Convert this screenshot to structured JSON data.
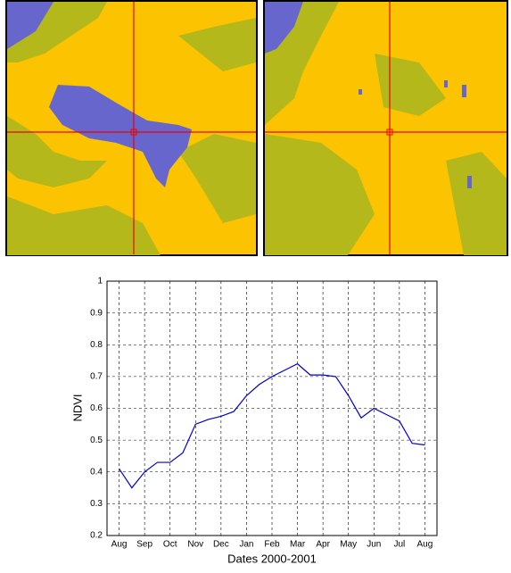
{
  "chart_data": {
    "type": "line",
    "xlabel": "Dates 2000-2001",
    "ylabel": "NDVI",
    "categories": [
      "Aug",
      null,
      "Sep",
      null,
      "Oct",
      null,
      "Nov",
      null,
      "Dec",
      null,
      "Jan",
      null,
      "Feb",
      null,
      "Mar",
      null,
      "Apr",
      null,
      "May",
      null,
      "Jun",
      null,
      "Jul",
      null,
      "Aug"
    ],
    "series": [
      {
        "color": "#0000cc",
        "values": [
          0.41,
          0.35,
          0.4,
          0.43,
          0.43,
          0.46,
          0.55,
          0.565,
          0.575,
          0.59,
          0.64,
          0.675,
          0.7,
          0.72,
          0.74,
          0.705,
          0.705,
          0.7,
          0.64,
          0.57,
          0.6,
          0.58,
          0.56,
          0.49,
          0.485
        ]
      }
    ],
    "ylim": [
      0.2,
      1
    ],
    "yticks": [
      0.2,
      0.3,
      0.4,
      0.5,
      0.6,
      0.7,
      0.8,
      0.9,
      1
    ],
    "grid": true
  }
}
